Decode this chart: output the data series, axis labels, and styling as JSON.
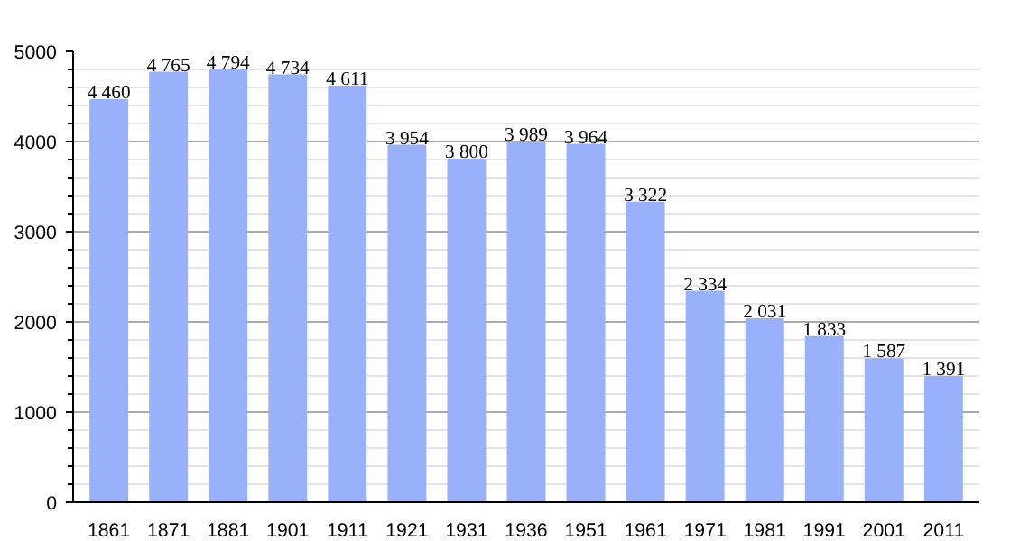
{
  "chart_data": {
    "type": "bar",
    "categories": [
      "1861",
      "1871",
      "1881",
      "1901",
      "1911",
      "1921",
      "1931",
      "1936",
      "1951",
      "1961",
      "1971",
      "1981",
      "1991",
      "2001",
      "2011"
    ],
    "values": [
      4460,
      4765,
      4794,
      4734,
      4611,
      3954,
      3800,
      3989,
      3964,
      3322,
      2334,
      2031,
      1833,
      1587,
      1391
    ],
    "value_labels": [
      "4 460",
      "4 765",
      "4 794",
      "4 734",
      "4 611",
      "3 954",
      "3 800",
      "3 989",
      "3 964",
      "3 322",
      "2 334",
      "2 031",
      "1 833",
      "1 587",
      "1 391"
    ],
    "color": "#99b1fb",
    "ylim": [
      0,
      5000
    ],
    "yticks": [
      0,
      1000,
      2000,
      3000,
      4000,
      5000
    ],
    "grid": "y"
  }
}
